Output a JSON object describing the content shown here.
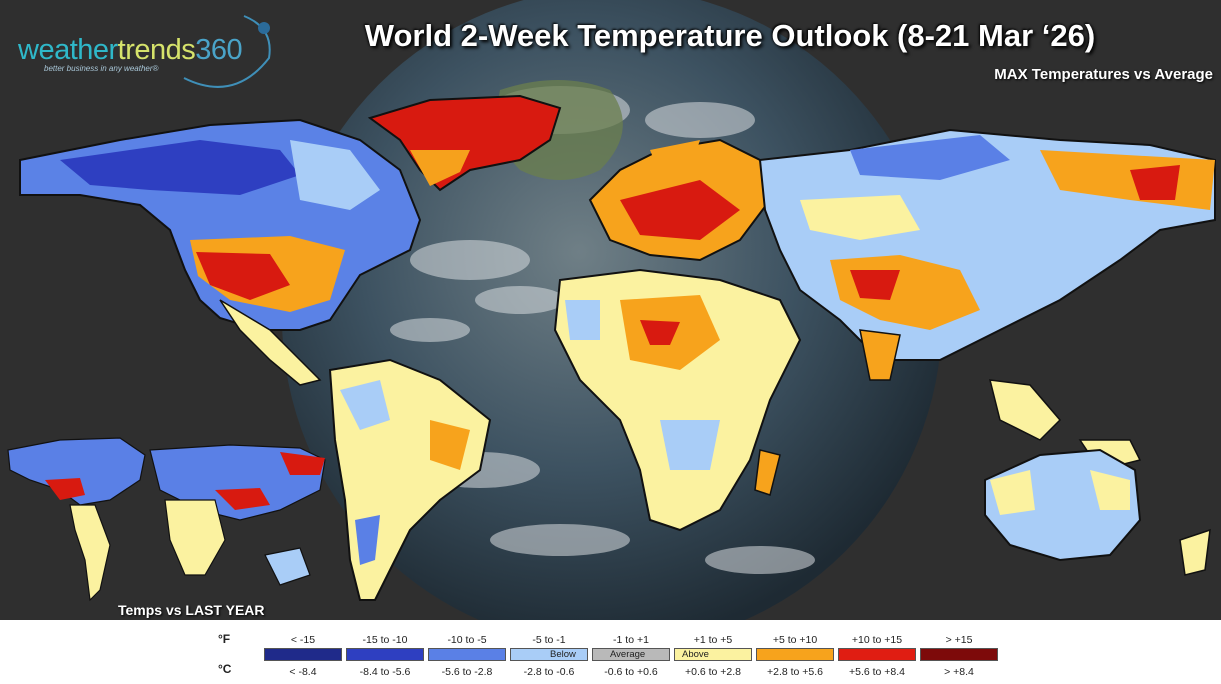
{
  "title": "World 2-Week Temperature Outlook (8-21 Mar ‘26)",
  "subtitle": "MAX Temperatures vs Average",
  "logo": {
    "part1": "weather",
    "part2": "trends",
    "part3": "360",
    "tagline": "better business in any weather®"
  },
  "inset_label": "Temps vs LAST YEAR",
  "legend": {
    "unit_f": "°F",
    "unit_c": "°C",
    "bins": [
      {
        "f": "< -15",
        "c": "< -8.4",
        "color": "#1f2a8a",
        "word": ""
      },
      {
        "f": "-15 to -10",
        "c": "-8.4 to -5.6",
        "color": "#2e3fc1",
        "word": ""
      },
      {
        "f": "-10 to -5",
        "c": "-5.6 to -2.8",
        "color": "#5a80e6",
        "word": ""
      },
      {
        "f": "-5 to -1",
        "c": "-2.8 to -0.6",
        "color": "#a9cdf7",
        "word": "Below"
      },
      {
        "f": "-1 to +1",
        "c": "-0.6 to +0.6",
        "color": "#b9b9b9",
        "word": "Average"
      },
      {
        "f": "+1 to +5",
        "c": "+0.6 to +2.8",
        "color": "#fbf2a0",
        "word": "Above"
      },
      {
        "f": "+5 to +10",
        "c": "+2.8 to +5.6",
        "color": "#f7a31c",
        "word": ""
      },
      {
        "f": "+10 to +15",
        "c": "+5.6 to +8.4",
        "color": "#e01d12",
        "word": ""
      },
      {
        "f": "> +15",
        "c": "> +8.4",
        "color": "#7d0a0a",
        "word": ""
      }
    ]
  }
}
